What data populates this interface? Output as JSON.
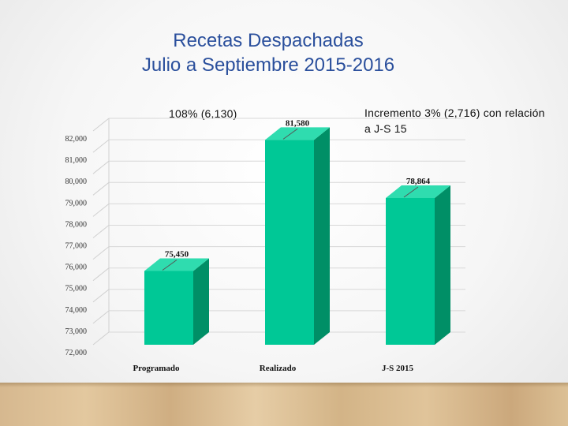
{
  "slide": {
    "title_line1": "Recetas Despachadas",
    "title_line2": "Julio a Septiembre 2015-2016",
    "annotation_left": "108% (6,130)",
    "annotation_right": "Incremento 3% (2,716) con relación a J-S 15"
  },
  "colors": {
    "bar_front": "#00c896",
    "bar_side": "#008f66",
    "bar_top": "#2fdcaf",
    "title": "#2a4f9c"
  },
  "chart_data": {
    "type": "bar",
    "categories": [
      "Programado",
      "Realizado",
      "J-S 2015"
    ],
    "values": [
      75450,
      81580,
      78864
    ],
    "data_labels": [
      "75,450",
      "81,580",
      "78,864"
    ],
    "yticks": [
      72000,
      73000,
      74000,
      75000,
      76000,
      77000,
      78000,
      79000,
      80000,
      81000,
      82000
    ],
    "ytick_labels": [
      "72,000",
      "73,000",
      "74,000",
      "75,000",
      "76,000",
      "77,000",
      "78,000",
      "79,000",
      "80,000",
      "81,000",
      "82,000"
    ],
    "ylim": [
      72000,
      82000
    ],
    "grid": true,
    "title": "",
    "xlabel": "",
    "ylabel": ""
  }
}
